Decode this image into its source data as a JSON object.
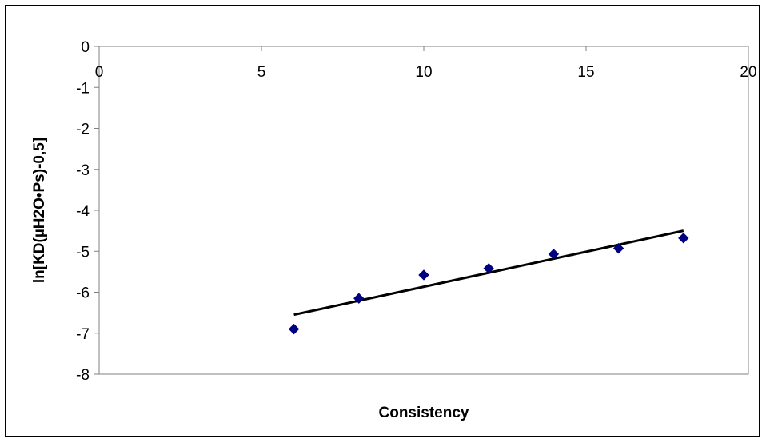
{
  "chart_data": {
    "type": "scatter",
    "xlabel": "Consistency",
    "ylabel": "ln[KD(µH2O•Ps)-0,5]",
    "xlim": [
      0,
      20
    ],
    "ylim": [
      -8,
      0
    ],
    "x_ticks": [
      0,
      5,
      10,
      15,
      20
    ],
    "y_ticks": [
      0,
      -1,
      -2,
      -3,
      -4,
      -5,
      -6,
      -7,
      -8
    ],
    "x_tick_labels": [
      "0",
      "5",
      "10",
      "15",
      "20"
    ],
    "y_tick_labels": [
      "0",
      "-1",
      "-2",
      "-3",
      "-4",
      "-5",
      "-6",
      "-7",
      "-8"
    ],
    "x_axis_position": "top (at y = 0)",
    "grid": false,
    "legend": "none",
    "series": [
      {
        "marker": "diamond",
        "color": "#000080",
        "points": [
          {
            "x": 6,
            "y": -6.9
          },
          {
            "x": 8,
            "y": -6.15
          },
          {
            "x": 10,
            "y": -5.58
          },
          {
            "x": 12,
            "y": -5.42
          },
          {
            "x": 14,
            "y": -5.07
          },
          {
            "x": 16,
            "y": -4.93
          },
          {
            "x": 18,
            "y": -4.68
          }
        ]
      }
    ],
    "trendline": {
      "type": "linear",
      "color": "#000000",
      "x": [
        6,
        18
      ],
      "y": [
        -6.55,
        -4.5
      ]
    }
  }
}
